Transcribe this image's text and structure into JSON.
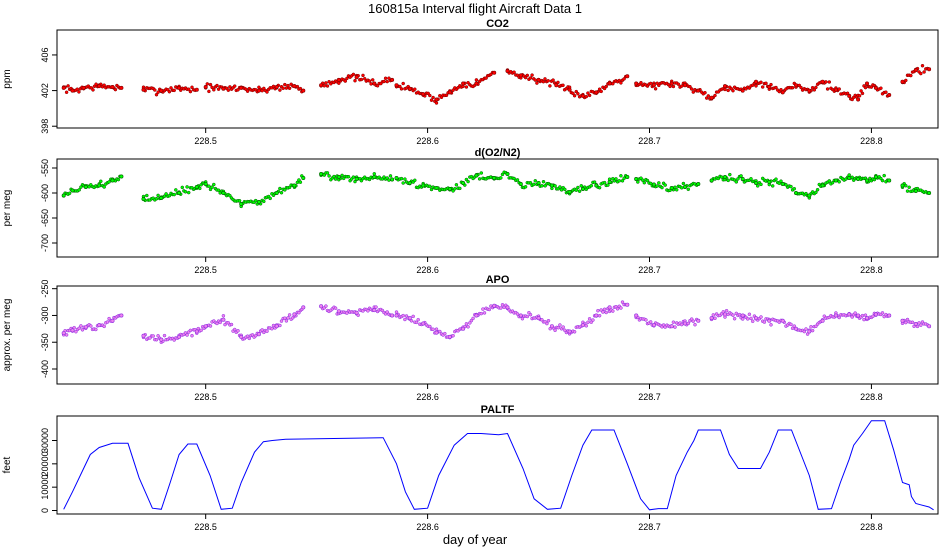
{
  "figure": {
    "title": "160815a   Interval flight Aircraft Data 1",
    "xlabel": "day of year"
  },
  "chart_data": [
    {
      "type": "scatter",
      "title": "CO2",
      "ylabel": "ppm",
      "color": "#ff0000",
      "edge_color": "#7a0000",
      "xlim": [
        228.433,
        228.83
      ],
      "ylim": [
        397.8,
        408.8
      ],
      "yticks": [
        398,
        402,
        406
      ],
      "xticks": [
        228.5,
        228.6,
        228.7,
        228.8
      ],
      "series": [
        {
          "x": [
            228.436,
            228.44,
            228.445,
            228.452,
            228.458,
            228.462,
            228.472,
            228.48,
            228.488,
            228.496,
            228.5,
            228.508,
            228.516,
            228.524,
            228.532,
            228.54,
            228.544,
            228.552,
            228.56,
            228.568,
            228.576,
            228.584,
            228.586,
            228.592,
            228.598,
            228.604,
            228.61,
            228.616,
            228.622,
            228.63,
            228.636,
            228.642,
            228.65,
            228.658,
            228.664,
            228.67,
            228.676,
            228.682,
            228.69,
            228.694,
            228.702,
            228.71,
            228.716,
            228.722,
            228.728,
            228.734,
            228.742,
            228.748,
            228.754,
            228.76,
            228.766,
            228.772,
            228.778,
            228.784,
            228.79,
            228.794,
            228.798,
            228.802,
            228.808,
            228.814,
            228.82,
            228.826
          ],
          "y": [
            402.3,
            402.0,
            402.3,
            402.5,
            402.4,
            402.3,
            402.1,
            402.0,
            402.3,
            402.1,
            402.4,
            402.2,
            402.3,
            402.0,
            402.4,
            402.5,
            402.0,
            402.6,
            403.2,
            403.5,
            402.8,
            403.2,
            402.6,
            402.2,
            401.6,
            401.0,
            401.8,
            402.8,
            402.8,
            404.0,
            404.2,
            403.7,
            403.2,
            402.6,
            402.1,
            401.4,
            401.8,
            402.8,
            403.6,
            402.8,
            402.6,
            402.8,
            402.6,
            402.0,
            401.2,
            402.5,
            402.0,
            403.0,
            402.4,
            401.8,
            402.6,
            402.0,
            403.0,
            402.1,
            401.4,
            401.0,
            402.8,
            402.3,
            401.5,
            403.0,
            404.3,
            404.4
          ],
          "gaps_after": [
            228.462,
            228.496,
            228.544,
            228.584,
            228.63,
            228.69,
            228.762,
            228.8,
            228.808
          ]
        }
      ]
    },
    {
      "type": "scatter",
      "title": "d(O2/N2)",
      "ylabel": "per meg",
      "color": "#00ff00",
      "edge_color": "#005a00",
      "xlim": [
        228.433,
        228.83
      ],
      "ylim": [
        -728,
        -532
      ],
      "yticks": [
        -700,
        -650,
        -600,
        -550
      ],
      "xticks": [
        228.5,
        228.6,
        228.7,
        228.8
      ],
      "series": [
        {
          "x": [
            228.436,
            228.44,
            228.446,
            228.452,
            228.458,
            228.462,
            228.472,
            228.48,
            228.488,
            228.496,
            228.5,
            228.508,
            228.516,
            228.524,
            228.532,
            228.54,
            228.544,
            228.552,
            228.56,
            228.568,
            228.576,
            228.584,
            228.586,
            228.592,
            228.598,
            228.604,
            228.61,
            228.616,
            228.622,
            228.63,
            228.636,
            228.642,
            228.65,
            228.656,
            228.664,
            228.67,
            228.676,
            228.682,
            228.69,
            228.694,
            228.702,
            228.71,
            228.716,
            228.722,
            228.728,
            228.734,
            228.742,
            228.748,
            228.754,
            228.76,
            228.766,
            228.772,
            228.778,
            228.784,
            228.79,
            228.794,
            228.798,
            228.802,
            228.808,
            228.814,
            228.82,
            228.826
          ],
          "y": [
            -605,
            -595,
            -588,
            -585,
            -575,
            -567,
            -612,
            -610,
            -600,
            -588,
            -582,
            -600,
            -622,
            -618,
            -600,
            -585,
            -570,
            -562,
            -568,
            -572,
            -568,
            -573,
            -570,
            -580,
            -585,
            -590,
            -592,
            -580,
            -565,
            -570,
            -562,
            -582,
            -580,
            -585,
            -598,
            -592,
            -585,
            -578,
            -568,
            -572,
            -583,
            -590,
            -588,
            -582,
            -575,
            -568,
            -572,
            -580,
            -578,
            -582,
            -600,
            -605,
            -585,
            -575,
            -570,
            -572,
            -575,
            -568,
            -575,
            -585,
            -596,
            -600
          ],
          "gaps_after": [
            228.462,
            228.544,
            228.584,
            228.632,
            228.66,
            228.69,
            228.722,
            228.8,
            228.808
          ]
        }
      ]
    },
    {
      "type": "scatter",
      "title": "APO",
      "ylabel": "approx. per meg",
      "color": "#ee82ee",
      "edge_color": "#8a2be2",
      "xlim": [
        228.433,
        228.83
      ],
      "ylim": [
        -428,
        -245
      ],
      "yticks": [
        -400,
        -350,
        -300,
        -250
      ],
      "xticks": [
        228.5,
        228.6,
        228.7,
        228.8
      ],
      "series": [
        {
          "x": [
            228.436,
            228.44,
            228.446,
            228.452,
            228.458,
            228.462,
            228.472,
            228.48,
            228.488,
            228.496,
            228.5,
            228.508,
            228.516,
            228.524,
            228.532,
            228.54,
            228.544,
            228.552,
            228.56,
            228.568,
            228.576,
            228.584,
            228.586,
            228.592,
            228.598,
            228.604,
            228.61,
            228.616,
            228.622,
            228.63,
            228.636,
            228.642,
            228.65,
            228.656,
            228.664,
            228.67,
            228.676,
            228.682,
            228.69,
            228.694,
            228.702,
            228.71,
            228.716,
            228.722,
            228.728,
            228.734,
            228.742,
            228.748,
            228.754,
            228.76,
            228.766,
            228.772,
            228.778,
            228.784,
            228.79,
            228.794,
            228.798,
            228.802,
            228.808,
            228.814,
            228.82,
            228.826
          ],
          "y": [
            -333,
            -328,
            -322,
            -318,
            -310,
            -300,
            -338,
            -345,
            -340,
            -330,
            -320,
            -308,
            -340,
            -335,
            -320,
            -298,
            -285,
            -283,
            -292,
            -295,
            -290,
            -300,
            -300,
            -305,
            -315,
            -332,
            -340,
            -325,
            -300,
            -282,
            -285,
            -300,
            -305,
            -320,
            -330,
            -318,
            -300,
            -285,
            -280,
            -300,
            -318,
            -320,
            -315,
            -310,
            -305,
            -298,
            -300,
            -305,
            -310,
            -310,
            -325,
            -330,
            -310,
            -300,
            -298,
            -300,
            -305,
            -298,
            -300,
            -310,
            -316,
            -320
          ],
          "gaps_after": [
            228.462,
            228.544,
            228.584,
            228.632,
            228.66,
            228.69,
            228.722,
            228.8,
            228.808
          ]
        }
      ]
    },
    {
      "type": "line",
      "title": "PALTF",
      "ylabel": "feet",
      "color": "#0000ff",
      "xlim": [
        228.433,
        228.83
      ],
      "ylim": [
        -1500,
        40500
      ],
      "yticks": [
        0,
        10000,
        20000,
        30000
      ],
      "xticks": [
        228.5,
        228.6,
        228.7,
        228.8
      ],
      "series": [
        {
          "x": [
            228.436,
            228.44,
            228.445,
            228.448,
            228.452,
            228.458,
            228.465,
            228.47,
            228.476,
            228.48,
            228.484,
            228.488,
            228.492,
            228.496,
            228.502,
            228.507,
            228.512,
            228.516,
            228.522,
            228.526,
            228.53,
            228.536,
            228.58,
            228.586,
            228.59,
            228.594,
            228.6,
            228.605,
            228.612,
            228.618,
            228.624,
            228.632,
            228.636,
            228.643,
            228.648,
            228.654,
            228.66,
            228.665,
            228.67,
            228.674,
            228.678,
            228.684,
            228.69,
            228.696,
            228.7,
            228.704,
            228.708,
            228.712,
            228.717,
            228.72,
            228.722,
            228.726,
            228.732,
            228.736,
            228.74,
            228.744,
            228.75,
            228.754,
            228.758,
            228.764,
            228.772,
            228.776,
            228.782,
            228.786,
            228.79,
            228.792,
            228.796,
            228.8,
            228.806,
            228.81,
            228.814,
            228.817,
            228.818,
            228.82,
            228.822,
            228.826,
            228.828
          ],
          "y": [
            500,
            8000,
            18000,
            24000,
            27000,
            28800,
            28800,
            14000,
            1000,
            500,
            12000,
            24000,
            28500,
            28500,
            15000,
            500,
            1000,
            12000,
            25000,
            29500,
            30000,
            30500,
            31200,
            20000,
            8000,
            500,
            1000,
            15000,
            28000,
            33000,
            33000,
            32500,
            33000,
            18000,
            5000,
            500,
            1000,
            15000,
            28000,
            34500,
            34500,
            34500,
            20000,
            5000,
            300,
            800,
            800,
            15000,
            25000,
            30000,
            34500,
            34500,
            34500,
            24000,
            18000,
            18000,
            18000,
            25000,
            34500,
            34500,
            15000,
            500,
            800,
            12000,
            22000,
            28000,
            33000,
            38500,
            38500,
            26000,
            12000,
            11000,
            6000,
            3000,
            2500,
            1500,
            300
          ]
        }
      ]
    }
  ]
}
